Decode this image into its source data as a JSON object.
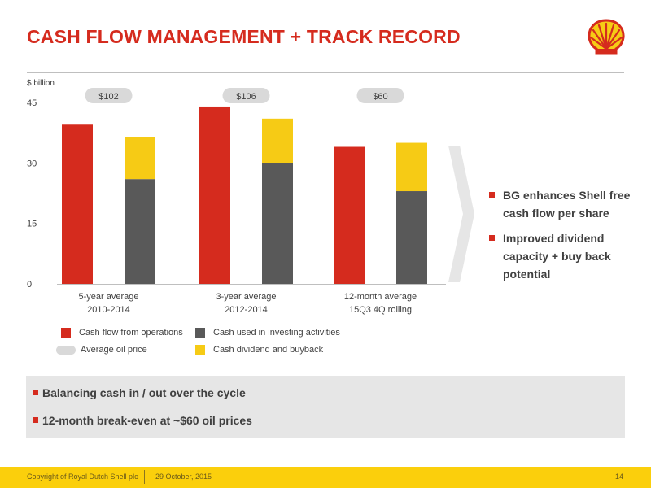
{
  "title": "CASH FLOW MANAGEMENT + TRACK RECORD",
  "colors": {
    "brand_red": "#d52b1e",
    "dark_grey": "#595959",
    "yellow": "#f6cb15",
    "pill_grey": "#d9d9d9",
    "footer_yellow": "#fbcf0c"
  },
  "logo": {
    "icon": "shell-pecten-icon"
  },
  "chart_data": {
    "type": "bar",
    "ylabel": "$ billion",
    "ylim": [
      0,
      45
    ],
    "yticks": [
      "0",
      "15",
      "30",
      "45"
    ],
    "grid": false,
    "groups": [
      {
        "label": [
          "5-year average",
          "2010-2014"
        ],
        "oil_price": "$102",
        "cash_flow_from_operations": 39.5,
        "cash_used_in_investing_activities": 26,
        "cash_dividend_and_buyback": 10.5
      },
      {
        "label": [
          "3-year average",
          "2012-2014"
        ],
        "oil_price": "$106",
        "cash_flow_from_operations": 44,
        "cash_used_in_investing_activities": 30,
        "cash_dividend_and_buyback": 11
      },
      {
        "label": [
          "12-month average",
          "15Q3 4Q rolling"
        ],
        "oil_price": "$60",
        "cash_flow_from_operations": 34,
        "cash_used_in_investing_activities": 23,
        "cash_dividend_and_buyback": 12
      }
    ],
    "legend": [
      {
        "name": "Cash flow from operations",
        "color": "#d52b1e",
        "shape": "square"
      },
      {
        "name": "Cash used in investing activities",
        "color": "#595959",
        "shape": "square"
      },
      {
        "name": "Average oil price",
        "color": "#d9d9d9",
        "shape": "pill"
      },
      {
        "name": "Cash dividend and buyback",
        "color": "#f6cb15",
        "shape": "square"
      }
    ]
  },
  "right_bullets": [
    "BG enhances Shell free cash flow per share",
    "Improved dividend capacity + buy back potential"
  ],
  "box_bullets": [
    "Balancing cash in / out over the cycle",
    "12-month break-even at ~$60 oil prices"
  ],
  "footer": {
    "copyright": "Copyright of Royal Dutch Shell plc",
    "date": "29  October, 2015",
    "page": "14"
  }
}
